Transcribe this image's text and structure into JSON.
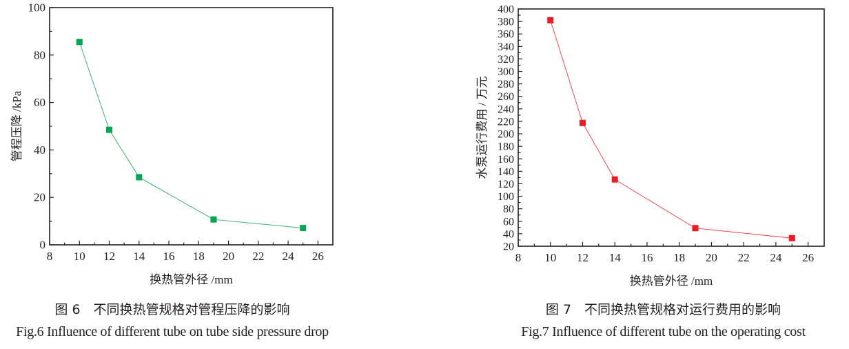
{
  "chart_data": [
    {
      "type": "line",
      "xlabel": "换热管外径 /mm",
      "ylabel": "管程压降 /kPa",
      "x": [
        10,
        12,
        14,
        19,
        25
      ],
      "values": [
        85.5,
        48.5,
        28.5,
        10.7,
        7.1
      ],
      "xlim": [
        8,
        27
      ],
      "ylim": [
        0,
        100
      ],
      "xticks": [
        8,
        10,
        12,
        14,
        16,
        18,
        20,
        22,
        24,
        26
      ],
      "yticks": [
        0,
        20,
        40,
        60,
        80,
        100
      ],
      "y_minor_step": 10,
      "grid": false,
      "marker": "square",
      "color": "#00a651",
      "line_color": "#3bb273",
      "caption_cn": "图 6　不同换热管规格对管程压降的影响",
      "caption_en": "Fig.6 Influence of different tube on tube side pressure drop"
    },
    {
      "type": "line",
      "xlabel": "换热管外径 /mm",
      "ylabel": "水泵运行费用 / 万元",
      "x": [
        10,
        12,
        14,
        19,
        25
      ],
      "values": [
        382,
        217.5,
        127,
        49,
        33
      ],
      "xlim": [
        8,
        27
      ],
      "ylim": [
        20,
        400
      ],
      "xticks": [
        8,
        10,
        12,
        14,
        16,
        18,
        20,
        22,
        24,
        26
      ],
      "yticks": [
        20,
        40,
        60,
        80,
        100,
        120,
        140,
        160,
        180,
        200,
        220,
        240,
        260,
        280,
        300,
        320,
        340,
        360,
        380,
        400
      ],
      "y_minor_step": 10,
      "grid": false,
      "marker": "square",
      "color": "#ed1c24",
      "line_color": "#ef4a50",
      "caption_cn": "图 7　不同换热管规格对运行费用的影响",
      "caption_en": "Fig.7  Influence of different tube on the operating cost"
    }
  ]
}
